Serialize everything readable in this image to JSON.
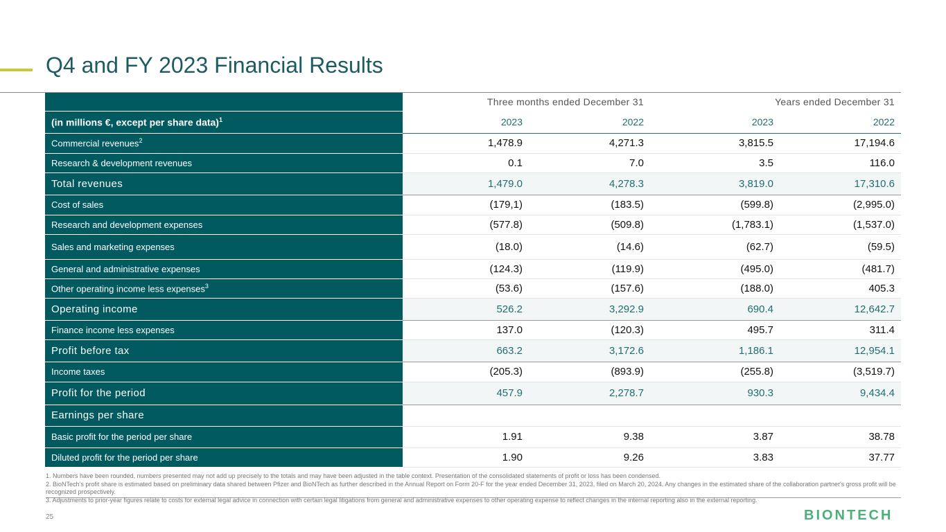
{
  "title": "Q4 and FY 2023 Financial Results",
  "table": {
    "group_headers": [
      "Three months ended December 31",
      "Years ended December 31"
    ],
    "unit_label": "(in millions €, except per share data)",
    "unit_sup": "1",
    "years": [
      "2023",
      "2022",
      "2023",
      "2022"
    ],
    "rows": [
      {
        "label": "Commercial revenues",
        "sup": "2",
        "values": [
          "1,478.9",
          "4,271.3",
          "3,815.5",
          "17,194.6"
        ]
      },
      {
        "label": "Research & development revenues",
        "values": [
          "0.1",
          "7.0",
          "3.5",
          "116.0"
        ]
      },
      {
        "label": "Total revenues",
        "values": [
          "1,479.0",
          "4,278.3",
          "3,819.0",
          "17,310.6"
        ]
      },
      {
        "label": "Cost of sales",
        "values": [
          "(179,1)",
          "(183.5)",
          "(599.8)",
          "(2,995.0)"
        ]
      },
      {
        "label": "Research and development expenses",
        "values": [
          "(577.8)",
          "(509.8)",
          "(1,783.1)",
          "(1,537.0)"
        ]
      },
      {
        "label": "Sales and marketing expenses",
        "values": [
          "(18.0)",
          "(14.6)",
          "(62.7)",
          "(59.5)"
        ]
      },
      {
        "label": "General and administrative expenses",
        "values": [
          "(124.3)",
          "(119.9)",
          "(495.0)",
          "(481.7)"
        ]
      },
      {
        "label": "Other operating income less expenses",
        "sup": "3",
        "values": [
          "(53.6)",
          "(157.6)",
          "(188.0)",
          "405.3"
        ]
      },
      {
        "label": "Operating income",
        "values": [
          "526.2",
          "3,292.9",
          "690.4",
          "12,642.7"
        ]
      },
      {
        "label": "Finance income less expenses",
        "values": [
          "137.0",
          "(120.3)",
          "495.7",
          "311.4"
        ]
      },
      {
        "label": "Profit before tax",
        "values": [
          "663.2",
          "3,172.6",
          "1,186.1",
          "12,954.1"
        ]
      },
      {
        "label": "Income taxes",
        "values": [
          "(205.3)",
          "(893.9)",
          "(255.8)",
          "(3,519.7)"
        ]
      },
      {
        "label": "Profit for the period",
        "values": [
          "457.9",
          "2,278.7",
          "930.3",
          "9,434.4"
        ]
      },
      {
        "label": "Earnings per share"
      },
      {
        "label": "Basic profit for the period per share",
        "values": [
          "1.91",
          "9.38",
          "3.87",
          "38.78"
        ]
      },
      {
        "label": "Diluted profit for the period per share",
        "values": [
          "1.90",
          "9.26",
          "3.83",
          "37.77"
        ]
      }
    ]
  },
  "footnotes": [
    "1. Numbers have been rounded, numbers presented may not add up precisely to the totals and may have been adjusted in the table context. Presentation of the consolidated statements of profit or loss has been condensed.",
    "2. BioNTech’s profit share is estimated based on preliminary data shared between Pfizer and BioNTech as further described in the Annual Report on Form 20-F for the year ended December 31, 2023, filed on March 20, 2024. Any changes in the estimated share of the collaboration partner's gross profit will be recognized prospectively.",
    "3. Adjustments to prior-year figures relate to costs for external legal advice in connection with certain legal litigations from general and administrative expenses to other operating expense to reflect changes in the internal reporting also in the external reporting."
  ],
  "page_number": "25",
  "logo": "BIONTECH"
}
